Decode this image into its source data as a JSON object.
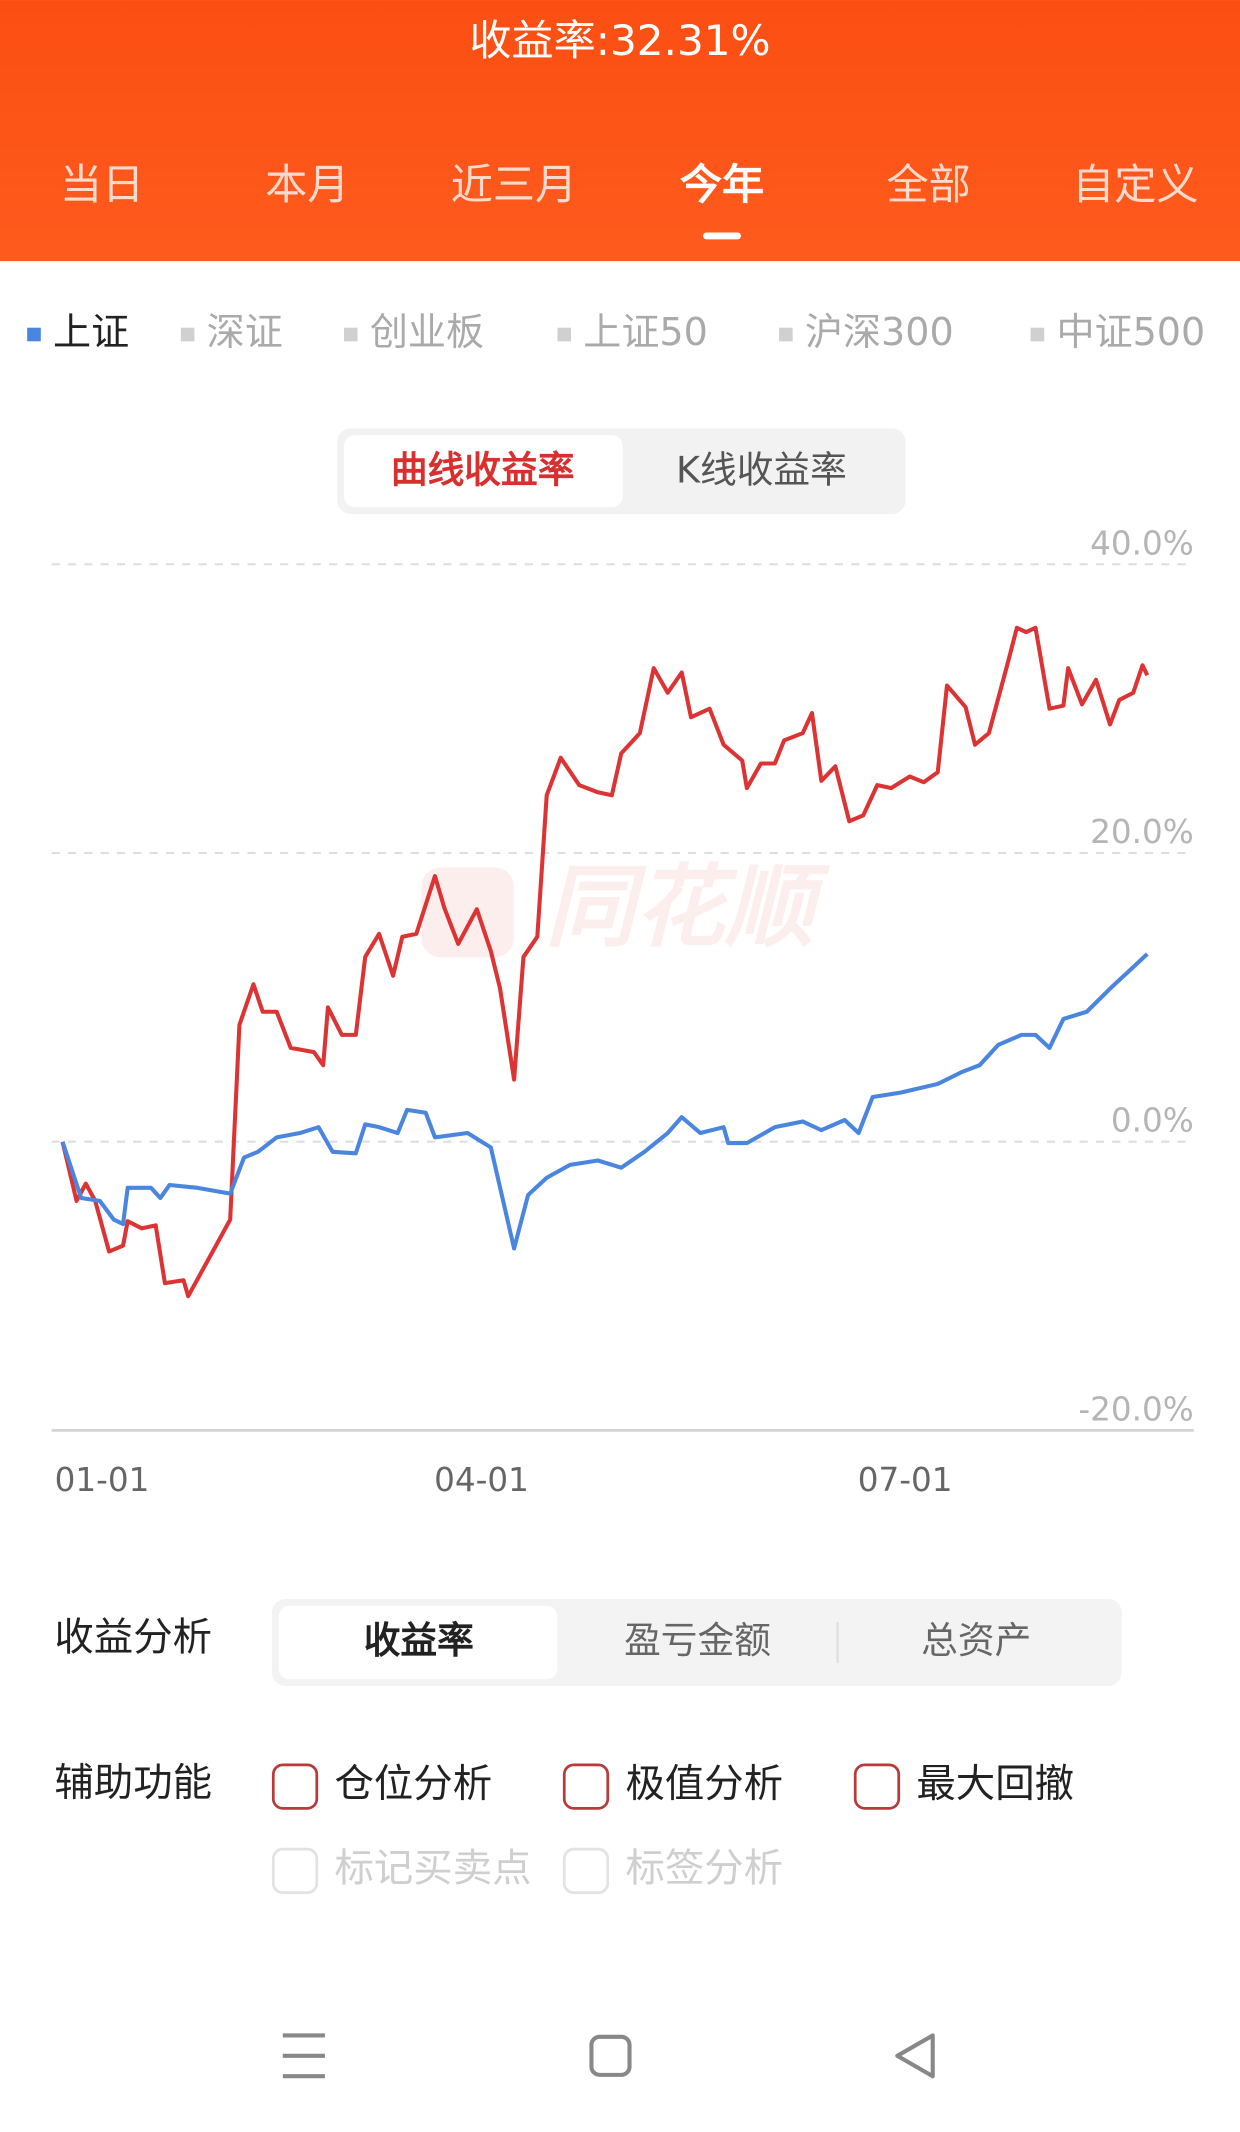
{
  "header": {
    "title": "收益率:32.31%",
    "tabs": [
      "当日",
      "本月",
      "近三月",
      "今年",
      "全部",
      "自定义"
    ],
    "active_tab": 3
  },
  "chart_mode": {
    "options": [
      "曲线收益率",
      "K线收益率"
    ],
    "active": 0
  },
  "chart_data": {
    "type": "line",
    "watermark": "同花顺",
    "xlim": [
      "01-01",
      "09-01"
    ],
    "xticks": [
      "01-01",
      "04-01",
      "07-01"
    ],
    "ylim": [
      -20,
      40
    ],
    "yticks": [
      {
        "value": 40,
        "label": "40.0%"
      },
      {
        "value": 20,
        "label": "20.0%"
      },
      {
        "value": 0,
        "label": "0.0%"
      },
      {
        "value": -20,
        "label": "-20.0%"
      }
    ],
    "grid": true,
    "other_indices": [
      "深证",
      "创业板",
      "上证50",
      "沪深300",
      "中证500"
    ],
    "series": [
      {
        "color": "#dc3434",
        "x": [
          "01-01",
          "01-04",
          "01-06",
          "01-08",
          "01-11",
          "01-14",
          "01-15",
          "01-18",
          "01-21",
          "01-23",
          "01-27",
          "01-28",
          "02-06",
          "02-08",
          "02-11",
          "02-13",
          "02-16",
          "02-19",
          "02-24",
          "02-26",
          "02-27",
          "03-02",
          "03-05",
          "03-07",
          "03-10",
          "03-13",
          "03-15",
          "03-18",
          "03-22",
          "03-24",
          "03-27",
          "03-31",
          "04-03",
          "04-05",
          "04-08",
          "04-10",
          "04-13",
          "04-15",
          "04-18",
          "04-22",
          "04-26",
          "04-29",
          "05-01",
          "05-05",
          "05-08",
          "05-11",
          "05-14",
          "05-16",
          "05-20",
          "05-23",
          "05-27",
          "05-28",
          "05-31",
          "06-03",
          "06-05",
          "06-09",
          "06-11",
          "06-13",
          "06-16",
          "06-19",
          "06-22",
          "06-25",
          "06-28",
          "07-02",
          "07-05",
          "07-08",
          "07-10",
          "07-14",
          "07-16",
          "07-19",
          "07-23",
          "07-25",
          "07-27",
          "07-29",
          "08-01",
          "08-04",
          "08-05",
          "08-08",
          "08-11",
          "08-14",
          "08-16",
          "08-19",
          "08-21",
          "08-22"
        ],
        "values": [
          0,
          -4.1,
          -2.9,
          -4.1,
          -7.6,
          -7.2,
          -5.5,
          -6.0,
          -5.8,
          -9.8,
          -9.6,
          -10.7,
          -5.4,
          8.1,
          10.9,
          9.0,
          9.0,
          6.5,
          6.2,
          5.3,
          9.3,
          7.4,
          7.4,
          12.8,
          14.4,
          11.5,
          14.2,
          14.4,
          18.4,
          16.2,
          13.7,
          16.1,
          13.2,
          10.6,
          4.3,
          12.8,
          14.2,
          24.0,
          26.6,
          24.7,
          24.2,
          24.0,
          26.9,
          28.3,
          32.8,
          31.1,
          32.5,
          29.4,
          30.0,
          27.5,
          26.4,
          24.5,
          26.2,
          26.2,
          27.8,
          28.3,
          29.7,
          25.0,
          26.0,
          22.2,
          22.6,
          24.7,
          24.5,
          25.3,
          24.9,
          25.6,
          31.6,
          30.1,
          27.5,
          28.3,
          33.1,
          35.6,
          35.3,
          35.6,
          30.0,
          30.2,
          32.8,
          30.3,
          32.0,
          28.9,
          30.6,
          31.1,
          33.0,
          32.31
        ]
      },
      {
        "name": "上证",
        "color": "#4a85e0",
        "x": [
          "01-01",
          "01-05",
          "01-09",
          "01-12",
          "01-14",
          "01-15",
          "01-20",
          "01-22",
          "01-24",
          "01-30",
          "02-06",
          "02-09",
          "02-12",
          "02-16",
          "02-21",
          "02-25",
          "02-28",
          "03-05",
          "03-07",
          "03-10",
          "03-14",
          "03-16",
          "03-20",
          "03-22",
          "03-29",
          "04-03",
          "04-08",
          "04-11",
          "04-15",
          "04-20",
          "04-26",
          "05-01",
          "05-06",
          "05-11",
          "05-14",
          "05-18",
          "05-23",
          "05-24",
          "05-28",
          "06-03",
          "06-09",
          "06-13",
          "06-18",
          "06-21",
          "06-24",
          "06-30",
          "07-08",
          "07-13",
          "07-17",
          "07-21",
          "07-26",
          "07-29",
          "08-01",
          "08-04",
          "08-09",
          "08-14",
          "08-18",
          "08-22"
        ],
        "values": [
          0,
          -3.9,
          -4.1,
          -5.4,
          -5.7,
          -3.2,
          -3.2,
          -3.9,
          -3.0,
          -3.2,
          -3.6,
          -1.1,
          -0.7,
          0.3,
          0.6,
          1.0,
          -0.7,
          -0.8,
          1.2,
          1.0,
          0.6,
          2.2,
          2.0,
          0.3,
          0.6,
          -0.4,
          -7.4,
          -3.7,
          -2.5,
          -1.6,
          -1.3,
          -1.8,
          -0.7,
          0.6,
          1.7,
          0.6,
          1.0,
          -0.1,
          -0.1,
          1.0,
          1.4,
          0.8,
          1.5,
          0.6,
          3.1,
          3.4,
          4.0,
          4.8,
          5.3,
          6.7,
          7.4,
          7.4,
          6.5,
          8.5,
          9.0,
          10.6,
          11.8,
          13.0
        ]
      }
    ]
  },
  "analysis": {
    "label": "收益分析",
    "options": [
      "收益率",
      "盈亏金额",
      "总资产"
    ],
    "active": 0
  },
  "tools": {
    "label": "辅助功能",
    "options": [
      {
        "label": "仓位分析",
        "enabled": true
      },
      {
        "label": "极值分析",
        "enabled": true
      },
      {
        "label": "最大回撤",
        "enabled": true
      },
      {
        "label": "标记买卖点",
        "enabled": false
      },
      {
        "label": "标签分析",
        "enabled": false
      }
    ]
  }
}
